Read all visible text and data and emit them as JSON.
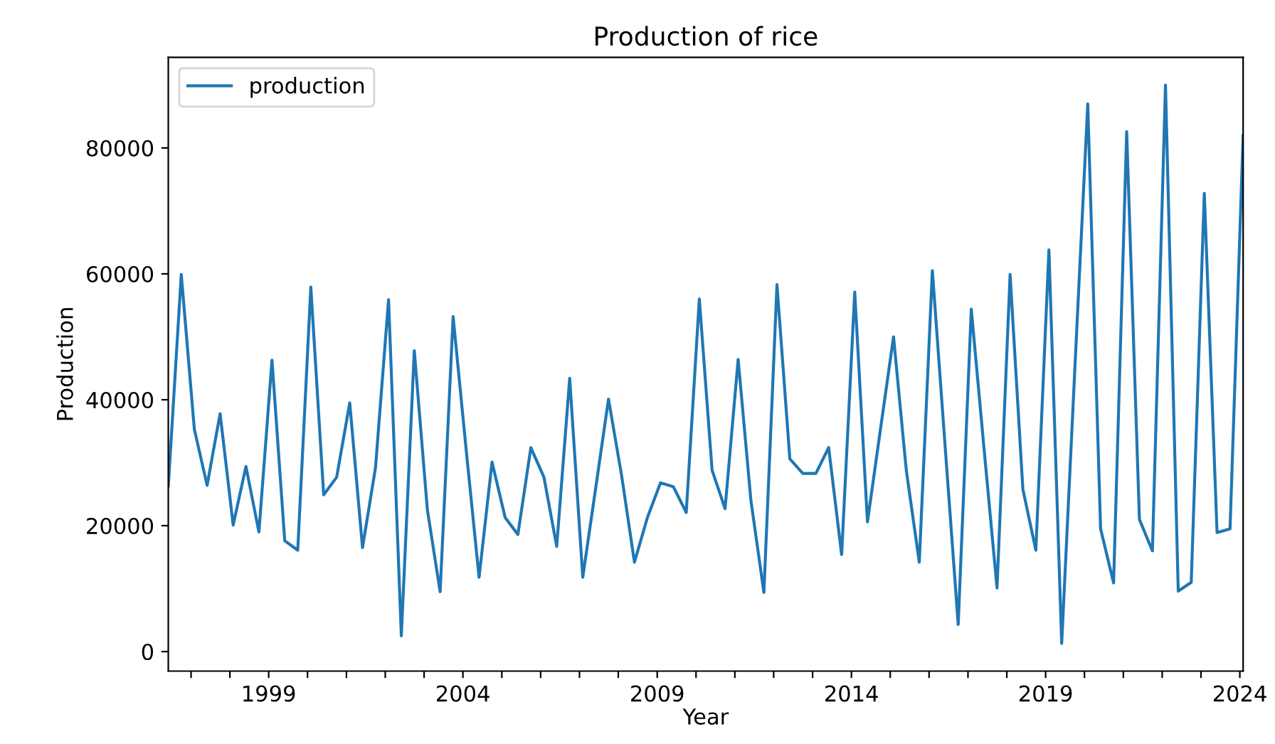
{
  "chart_data": {
    "type": "line",
    "title": "Production of rice",
    "xlabel": "Year",
    "ylabel": "Production",
    "x": [
      "1996-06",
      "1996-10",
      "1997-02",
      "1997-06",
      "1997-10",
      "1998-02",
      "1998-06",
      "1998-10",
      "1999-02",
      "1999-06",
      "1999-10",
      "2000-02",
      "2000-06",
      "2000-10",
      "2001-02",
      "2001-06",
      "2001-10",
      "2002-02",
      "2002-06",
      "2002-10",
      "2003-02",
      "2003-06",
      "2003-10",
      "2004-02",
      "2004-06",
      "2004-10",
      "2005-02",
      "2005-06",
      "2005-10",
      "2006-02",
      "2006-06",
      "2006-10",
      "2007-02",
      "2007-06",
      "2007-10",
      "2008-02",
      "2008-06",
      "2008-10",
      "2009-02",
      "2009-06",
      "2009-10",
      "2010-02",
      "2010-06",
      "2010-10",
      "2011-02",
      "2011-06",
      "2011-10",
      "2012-02",
      "2012-06",
      "2012-10",
      "2013-02",
      "2013-06",
      "2013-10",
      "2014-02",
      "2014-06",
      "2014-10",
      "2015-02",
      "2015-06",
      "2015-10",
      "2016-02",
      "2016-06",
      "2016-10",
      "2017-02",
      "2017-06",
      "2017-10",
      "2018-02",
      "2018-06",
      "2018-10",
      "2019-02",
      "2019-06",
      "2019-10",
      "2020-02",
      "2020-06",
      "2020-10",
      "2021-02",
      "2021-06",
      "2021-10",
      "2022-02",
      "2022-06",
      "2022-10",
      "2023-02",
      "2023-06",
      "2023-10",
      "2024-02"
    ],
    "series": [
      {
        "name": "production",
        "color": "#1f77b4",
        "values": [
          26300,
          59900,
          35300,
          26400,
          37800,
          20100,
          29400,
          19000,
          46300,
          17600,
          16100,
          57900,
          24900,
          27700,
          39500,
          16500,
          29200,
          55900,
          2500,
          47800,
          22500,
          9500,
          53200,
          32000,
          11800,
          30100,
          21300,
          18600,
          32400,
          27700,
          16700,
          43400,
          11800,
          25800,
          40100,
          28000,
          14200,
          21300,
          26800,
          26200,
          22100,
          56000,
          28800,
          22700,
          46400,
          24000,
          9400,
          58300,
          30600,
          28300,
          28300,
          32400,
          15400,
          57100,
          20600,
          35300,
          50000,
          28800,
          14200,
          60500,
          32400,
          4300,
          54400,
          32200,
          10100,
          59900,
          25800,
          16100,
          63800,
          1300,
          44300,
          87000,
          19500,
          10900,
          82600,
          21000,
          16000,
          90000,
          9600,
          11000,
          72800,
          18900,
          19500,
          82000
        ]
      }
    ],
    "xlim": [
      "1996-06",
      "2024-02"
    ],
    "xticks": [
      {
        "value": "1997",
        "label": null
      },
      {
        "value": "1998",
        "label": null
      },
      "1999",
      {
        "value": "2000",
        "label": null
      },
      {
        "value": "2001",
        "label": null
      },
      {
        "value": "2002",
        "label": null
      },
      {
        "value": "2003",
        "label": null
      },
      "2004",
      {
        "value": "2005",
        "label": null
      },
      {
        "value": "2006",
        "label": null
      },
      {
        "value": "2007",
        "label": null
      },
      {
        "value": "2008",
        "label": null
      },
      "2009",
      {
        "value": "2010",
        "label": null
      },
      {
        "value": "2011",
        "label": null
      },
      {
        "value": "2012",
        "label": null
      },
      {
        "value": "2013",
        "label": null
      },
      "2014",
      {
        "value": "2015",
        "label": null
      },
      {
        "value": "2016",
        "label": null
      },
      {
        "value": "2017",
        "label": null
      },
      {
        "value": "2018",
        "label": null
      },
      "2019",
      {
        "value": "2020",
        "label": null
      },
      {
        "value": "2021",
        "label": null
      },
      {
        "value": "2022",
        "label": null
      },
      {
        "value": "2023",
        "label": null
      },
      "2024"
    ],
    "ylim": [
      -3100,
      94400
    ],
    "yticks": [
      0,
      20000,
      40000,
      60000,
      80000
    ],
    "legend": "top left",
    "grid": false,
    "marker": "none",
    "line_style": "solid"
  }
}
